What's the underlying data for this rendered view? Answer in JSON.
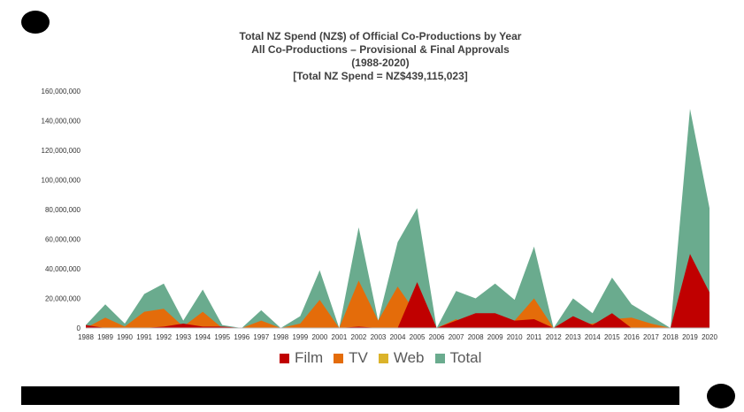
{
  "chart_data": {
    "type": "area",
    "title_lines": [
      "Total NZ Spend (NZ$) of Official Co-Productions by Year",
      "All Co-Productions – Provisional & Final Approvals",
      "(1988-2020)",
      "[Total NZ Spend = NZ$439,115,023]"
    ],
    "categories": [
      "1988",
      "1989",
      "1990",
      "1991",
      "1992",
      "1993",
      "1994",
      "1995",
      "1996",
      "1997",
      "1998",
      "1999",
      "2000",
      "2001",
      "2002",
      "2003",
      "2004",
      "2005",
      "2006",
      "2007",
      "2008",
      "2009",
      "2010",
      "2011",
      "2012",
      "2013",
      "2014",
      "2015",
      "2016",
      "2017",
      "2018",
      "2019",
      "2020"
    ],
    "y_ticks": [
      "0",
      "20,000,000",
      "40,000,000",
      "60,000,000",
      "80,000,000",
      "100,000,000",
      "120,000,000",
      "140,000,000",
      "160,000,000"
    ],
    "ylim": [
      0,
      160000000
    ],
    "series": [
      {
        "name": "Film",
        "color": "#c00000",
        "values": [
          2000000,
          0,
          0,
          0,
          1000000,
          3000000,
          1000000,
          1000000,
          0,
          0,
          0,
          0,
          0,
          0,
          1000000,
          0,
          0,
          31000000,
          0,
          5000000,
          10000000,
          10000000,
          5000000,
          6000000,
          0,
          8000000,
          2000000,
          10000000,
          0,
          0,
          0,
          50000000,
          24000000
        ]
      },
      {
        "name": "TV",
        "color": "#e46c0a",
        "values": [
          0,
          7000000,
          1000000,
          11000000,
          13000000,
          1000000,
          11000000,
          0,
          0,
          5000000,
          0,
          3000000,
          19000000,
          0,
          32000000,
          5000000,
          28000000,
          9000000,
          0,
          6000000,
          0,
          4000000,
          5000000,
          20000000,
          0,
          2000000,
          3000000,
          6000000,
          7000000,
          3000000,
          0,
          24000000,
          17000000
        ]
      },
      {
        "name": "Web",
        "color": "#dbb32a",
        "values": [
          0,
          0,
          0,
          0,
          0,
          0,
          0,
          0,
          0,
          0,
          0,
          0,
          0,
          0,
          0,
          0,
          0,
          0,
          0,
          0,
          0,
          0,
          0,
          0,
          0,
          0,
          0,
          0,
          0,
          0,
          0,
          0,
          0
        ]
      },
      {
        "name": "Total",
        "color": "#6aab8e",
        "values": [
          2000000,
          16000000,
          3000000,
          23000000,
          30000000,
          5000000,
          26000000,
          2000000,
          0,
          12000000,
          0,
          8000000,
          39000000,
          0,
          68000000,
          5000000,
          58000000,
          81000000,
          0,
          25000000,
          20000000,
          30000000,
          19000000,
          55000000,
          0,
          20000000,
          10000000,
          34000000,
          16000000,
          8000000,
          0,
          148000000,
          81000000
        ]
      }
    ],
    "legend_position": "bottom",
    "grid": false
  }
}
